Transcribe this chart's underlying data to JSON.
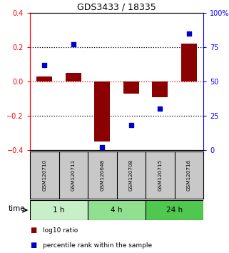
{
  "title": "GDS3433 / 18335",
  "samples": [
    "GSM120710",
    "GSM120711",
    "GSM120648",
    "GSM120708",
    "GSM120715",
    "GSM120716"
  ],
  "log10_ratio": [
    0.03,
    0.05,
    -0.35,
    -0.07,
    -0.09,
    0.22
  ],
  "percentile_rank": [
    62,
    77,
    2,
    18,
    30,
    85
  ],
  "groups": [
    {
      "label": "1 h",
      "indices": [
        0,
        1
      ],
      "color": "#c8f0c8"
    },
    {
      "label": "4 h",
      "indices": [
        2,
        3
      ],
      "color": "#90e090"
    },
    {
      "label": "24 h",
      "indices": [
        4,
        5
      ],
      "color": "#50c850"
    }
  ],
  "ylim_left": [
    -0.4,
    0.4
  ],
  "ylim_right": [
    0,
    100
  ],
  "bar_color": "#8b0000",
  "dot_color": "#0000cc",
  "background_color": "#ffffff",
  "sample_box_color": "#c8c8c8",
  "yticks_left": [
    -0.4,
    -0.2,
    0.0,
    0.2,
    0.4
  ],
  "yticks_right": [
    0,
    25,
    50,
    75,
    100
  ],
  "time_label": "time"
}
